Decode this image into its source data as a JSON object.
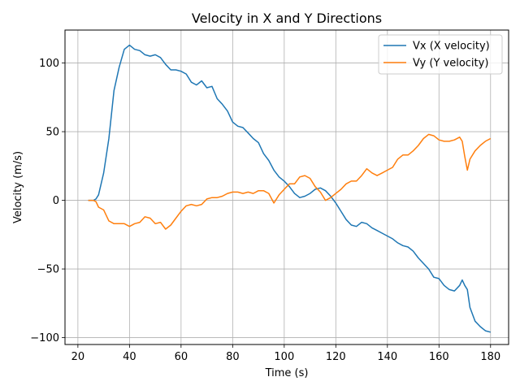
{
  "chart_data": {
    "type": "line",
    "title": "Velocity in X and Y Directions",
    "xlabel": "Time (s)",
    "ylabel": "Velocity (m/s)",
    "xlim": [
      15,
      187
    ],
    "ylim": [
      -105,
      124
    ],
    "xticks": [
      20,
      40,
      60,
      80,
      100,
      120,
      140,
      160,
      180
    ],
    "yticks": [
      -100,
      -50,
      0,
      50,
      100
    ],
    "grid": true,
    "legend_position": "top-right",
    "series": [
      {
        "name": "Vx (X velocity)",
        "color": "#1f77b4",
        "x": [
          24,
          26,
          27,
          28,
          30,
          32,
          34,
          36,
          38,
          40,
          42,
          44,
          46,
          48,
          50,
          52,
          54,
          56,
          58,
          60,
          62,
          64,
          66,
          68,
          70,
          72,
          74,
          76,
          78,
          80,
          82,
          84,
          86,
          88,
          90,
          92,
          94,
          96,
          98,
          100,
          102,
          104,
          106,
          108,
          110,
          112,
          114,
          116,
          118,
          120,
          122,
          124,
          126,
          128,
          130,
          132,
          134,
          136,
          138,
          140,
          142,
          144,
          146,
          148,
          150,
          152,
          154,
          156,
          158,
          160,
          162,
          164,
          166,
          168,
          169,
          170,
          171,
          172,
          174,
          176,
          178,
          180
        ],
        "y": [
          0,
          0,
          1,
          4,
          20,
          45,
          80,
          97,
          110,
          113,
          110,
          109,
          106,
          105,
          106,
          104,
          99,
          95,
          95,
          94,
          92,
          86,
          84,
          87,
          82,
          83,
          74,
          70,
          65,
          57,
          54,
          53,
          49,
          45,
          42,
          34,
          29,
          22,
          17,
          14,
          10,
          5,
          2,
          3,
          5,
          8,
          9,
          7,
          3,
          -2,
          -8,
          -14,
          -18,
          -19,
          -16,
          -17,
          -20,
          -22,
          -24,
          -26,
          -28,
          -31,
          -33,
          -34,
          -37,
          -42,
          -46,
          -50,
          -56,
          -57,
          -62,
          -65,
          -66,
          -62,
          -58,
          -62,
          -65,
          -78,
          -88,
          -92,
          -95,
          -96
        ]
      },
      {
        "name": "Vy (Y velocity)",
        "color": "#ff7f0e",
        "x": [
          24,
          26,
          27,
          28,
          30,
          32,
          34,
          36,
          38,
          40,
          42,
          44,
          46,
          48,
          50,
          52,
          54,
          56,
          58,
          60,
          62,
          64,
          66,
          68,
          70,
          72,
          74,
          76,
          78,
          80,
          82,
          84,
          86,
          88,
          90,
          92,
          94,
          96,
          98,
          100,
          102,
          104,
          106,
          108,
          110,
          112,
          114,
          116,
          118,
          120,
          122,
          124,
          126,
          128,
          130,
          132,
          134,
          136,
          138,
          140,
          142,
          144,
          146,
          148,
          150,
          152,
          154,
          156,
          158,
          160,
          162,
          164,
          166,
          168,
          169,
          170,
          171,
          172,
          174,
          176,
          178,
          180
        ],
        "y": [
          0,
          0,
          -1,
          -5,
          -7,
          -15,
          -17,
          -17,
          -17,
          -19,
          -17,
          -16,
          -12,
          -13,
          -17,
          -16,
          -21,
          -18,
          -13,
          -8,
          -4,
          -3,
          -4,
          -3,
          1,
          2,
          2,
          3,
          5,
          6,
          6,
          5,
          6,
          5,
          7,
          7,
          5,
          -2,
          4,
          8,
          12,
          12,
          17,
          18,
          16,
          10,
          6,
          0,
          2,
          5,
          8,
          12,
          14,
          14,
          18,
          23,
          20,
          18,
          20,
          22,
          24,
          30,
          33,
          33,
          36,
          40,
          45,
          48,
          47,
          44,
          43,
          43,
          44,
          46,
          43,
          32,
          22,
          30,
          36,
          40,
          43,
          45
        ]
      }
    ]
  }
}
